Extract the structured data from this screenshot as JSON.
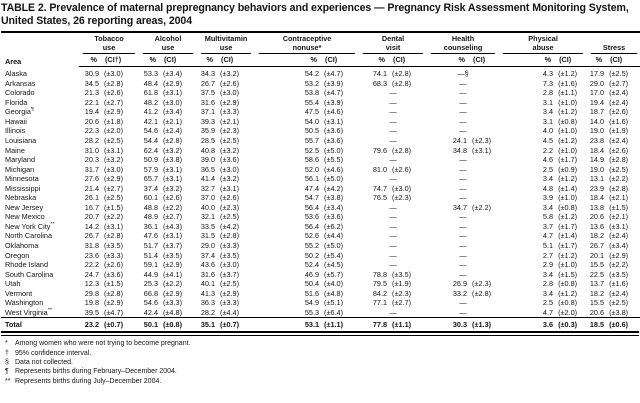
{
  "title": "TABLE 2. Prevalence of maternal prepregnancy behaviors and experiences — Pregnancy Risk Assessment Monitoring System, United States, 26 reporting areas, 2004",
  "header": {
    "area_label": "Area",
    "groups": [
      {
        "line1": "Tobacco",
        "line2": "use",
        "pct": "%",
        "ci": "(CI†)"
      },
      {
        "line1": "Alcohol",
        "line2": "use",
        "pct": "%",
        "ci": "(CI)"
      },
      {
        "line1": "Multivitamin",
        "line2": "use",
        "pct": "%",
        "ci": "(CI)"
      },
      {
        "line1": "Contraceptive",
        "line2": "nonuse*",
        "pct": "%",
        "ci": "(CI)"
      },
      {
        "line1": "Dental",
        "line2": "visit",
        "pct": "%",
        "ci": "(CI)"
      },
      {
        "line1": "Health",
        "line2": "counseling",
        "pct": "%",
        "ci": "(CI)"
      },
      {
        "line1": "Physical",
        "line2": "abuse",
        "pct": "%",
        "ci": "(CI)"
      },
      {
        "line1": "",
        "line2": "Stress",
        "pct": "%",
        "ci": "(CI)"
      }
    ]
  },
  "rows": [
    {
      "area": "Alaska",
      "marker": "",
      "cells": [
        [
          "30.9",
          "(±3.0)"
        ],
        [
          "53.3",
          "(±3.4)"
        ],
        [
          "34.3",
          "(±3.2)"
        ],
        [
          "54.2",
          "(±4.7)"
        ],
        [
          "74.1",
          "(±2.8)"
        ],
        [
          "—§",
          null
        ],
        [
          "4.3",
          "(±1.2)"
        ],
        [
          "17.9",
          "(±2.5)"
        ]
      ]
    },
    {
      "area": "Arkansas",
      "marker": "",
      "cells": [
        [
          "34.5",
          "(±2.8)"
        ],
        [
          "48.4",
          "(±2.9)"
        ],
        [
          "26.7",
          "(±2.6)"
        ],
        [
          "53.2",
          "(±3.9)"
        ],
        [
          "68.3",
          "(±2.8)"
        ],
        [
          "—",
          null
        ],
        [
          "7.3",
          "(±1.6)"
        ],
        [
          "29.0",
          "(±2.7)"
        ]
      ]
    },
    {
      "area": "Colorado",
      "marker": "",
      "cells": [
        [
          "21.3",
          "(±2.6)"
        ],
        [
          "61.8",
          "(±3.1)"
        ],
        [
          "37.5",
          "(±3.0)"
        ],
        [
          "53.8",
          "(±4.7)"
        ],
        [
          "—",
          null
        ],
        [
          "—",
          null
        ],
        [
          "2.8",
          "(±1.1)"
        ],
        [
          "17.0",
          "(±2.4)"
        ]
      ]
    },
    {
      "area": "Florida",
      "marker": "",
      "cells": [
        [
          "22.1",
          "(±2.7)"
        ],
        [
          "48.2",
          "(±3.0)"
        ],
        [
          "31.6",
          "(±2.9)"
        ],
        [
          "55.4",
          "(±3.9)"
        ],
        [
          "—",
          null
        ],
        [
          "—",
          null
        ],
        [
          "3.1",
          "(±1.0)"
        ],
        [
          "19.4",
          "(±2.4)"
        ]
      ]
    },
    {
      "area": "Georgia",
      "marker": "¶",
      "cells": [
        [
          "19.4",
          "(±2.9)"
        ],
        [
          "41.2",
          "(±3.4)"
        ],
        [
          "37.1",
          "(±3.3)"
        ],
        [
          "47.5",
          "(±4.6)"
        ],
        [
          "—",
          null
        ],
        [
          "—",
          null
        ],
        [
          "3.4",
          "(±1.2)"
        ],
        [
          "18.7",
          "(±2.6)"
        ]
      ]
    },
    {
      "area": "Hawaii",
      "marker": "",
      "cells": [
        [
          "20.6",
          "(±1.8)"
        ],
        [
          "42.1",
          "(±2.1)"
        ],
        [
          "39.3",
          "(±2.1)"
        ],
        [
          "54.0",
          "(±3.1)"
        ],
        [
          "—",
          null
        ],
        [
          "—",
          null
        ],
        [
          "3.1",
          "(±0.8)"
        ],
        [
          "14.0",
          "(±1.6)"
        ]
      ]
    },
    {
      "area": "Illinois",
      "marker": "",
      "cells": [
        [
          "22.3",
          "(±2.0)"
        ],
        [
          "54.6",
          "(±2.4)"
        ],
        [
          "35.9",
          "(±2.3)"
        ],
        [
          "50.5",
          "(±3.6)"
        ],
        [
          "—",
          null
        ],
        [
          "—",
          null
        ],
        [
          "4.0",
          "(±1.0)"
        ],
        [
          "19.0",
          "(±1.9)"
        ]
      ]
    },
    {
      "area": "Louisiana",
      "marker": "",
      "cells": [
        [
          "28.2",
          "(±2.5)"
        ],
        [
          "54.4",
          "(±2.8)"
        ],
        [
          "28.5",
          "(±2.5)"
        ],
        [
          "55.7",
          "(±3.6)"
        ],
        [
          "—",
          null
        ],
        [
          "24.1",
          "(±2.3)"
        ],
        [
          "4.5",
          "(±1.2)"
        ],
        [
          "23.8",
          "(±2.4)"
        ]
      ]
    },
    {
      "area": "Maine",
      "marker": "",
      "cells": [
        [
          "31.0",
          "(±3.1)"
        ],
        [
          "62.4",
          "(±3.2)"
        ],
        [
          "40.8",
          "(±3.2)"
        ],
        [
          "52.5",
          "(±5.0)"
        ],
        [
          "79.6",
          "(±2.8)"
        ],
        [
          "34.8",
          "(±3.1)"
        ],
        [
          "2.2",
          "(±1.0)"
        ],
        [
          "18.4",
          "(±2.6)"
        ]
      ]
    },
    {
      "area": "Maryland",
      "marker": "",
      "cells": [
        [
          "20.3",
          "(±3.2)"
        ],
        [
          "50.9",
          "(±3.8)"
        ],
        [
          "39.0",
          "(±3.6)"
        ],
        [
          "58.6",
          "(±5.5)"
        ],
        [
          "—",
          null
        ],
        [
          "—",
          null
        ],
        [
          "4.6",
          "(±1.7)"
        ],
        [
          "14.9",
          "(±2.8)"
        ]
      ]
    },
    {
      "area": "Michigan",
      "marker": "",
      "cells": [
        [
          "31.7",
          "(±3.0)"
        ],
        [
          "57.9",
          "(±3.1)"
        ],
        [
          "36.5",
          "(±3.0)"
        ],
        [
          "52.0",
          "(±4.6)"
        ],
        [
          "81.0",
          "(±2.6)"
        ],
        [
          "—",
          null
        ],
        [
          "2.5",
          "(±0.9)"
        ],
        [
          "19.0",
          "(±2.5)"
        ]
      ]
    },
    {
      "area": "Minnesota",
      "marker": "",
      "cells": [
        [
          "27.6",
          "(±2.9)"
        ],
        [
          "65.7",
          "(±3.1)"
        ],
        [
          "41.4",
          "(±3.2)"
        ],
        [
          "56.1",
          "(±5.0)"
        ],
        [
          "—",
          null
        ],
        [
          "—",
          null
        ],
        [
          "3.4",
          "(±1.2)"
        ],
        [
          "13.1",
          "(±2.2)"
        ]
      ]
    },
    {
      "area": "Mississippi",
      "marker": "",
      "cells": [
        [
          "21.4",
          "(±2.7)"
        ],
        [
          "37.4",
          "(±3.2)"
        ],
        [
          "32.7",
          "(±3.1)"
        ],
        [
          "47.4",
          "(±4.2)"
        ],
        [
          "74.7",
          "(±3.0)"
        ],
        [
          "—",
          null
        ],
        [
          "4.8",
          "(±1.4)"
        ],
        [
          "23.9",
          "(±2.8)"
        ]
      ]
    },
    {
      "area": "Nebraska",
      "marker": "",
      "cells": [
        [
          "26.1",
          "(±2.5)"
        ],
        [
          "60.1",
          "(±2.6)"
        ],
        [
          "37.0",
          "(±2.6)"
        ],
        [
          "54.7",
          "(±3.8)"
        ],
        [
          "76.5",
          "(±2.3)"
        ],
        [
          "—",
          null
        ],
        [
          "3.9",
          "(±1.0)"
        ],
        [
          "18.4",
          "(±2.1)"
        ]
      ]
    },
    {
      "area": "New Jersey",
      "marker": "",
      "cells": [
        [
          "16.7",
          "(±1.5)"
        ],
        [
          "48.8",
          "(±2.2)"
        ],
        [
          "40.0",
          "(±2.3)"
        ],
        [
          "56.4",
          "(±3.4)"
        ],
        [
          "—",
          null
        ],
        [
          "34.7",
          "(±2.2)"
        ],
        [
          "3.4",
          "(±0.8)"
        ],
        [
          "13.8",
          "(±1.5)"
        ]
      ]
    },
    {
      "area": "New Mexico",
      "marker": "",
      "cells": [
        [
          "20.7",
          "(±2.2)"
        ],
        [
          "48.9",
          "(±2.7)"
        ],
        [
          "32.1",
          "(±2.5)"
        ],
        [
          "53.6",
          "(±3.6)"
        ],
        [
          "—",
          null
        ],
        [
          "—",
          null
        ],
        [
          "5.8",
          "(±1.2)"
        ],
        [
          "20.6",
          "(±2.1)"
        ]
      ]
    },
    {
      "area": "New York City",
      "marker": "**",
      "cells": [
        [
          "14.2",
          "(±3.1)"
        ],
        [
          "36.1",
          "(±4.3)"
        ],
        [
          "33.5",
          "(±4.2)"
        ],
        [
          "56.4",
          "(±6.2)"
        ],
        [
          "—",
          null
        ],
        [
          "—",
          null
        ],
        [
          "3.7",
          "(±1.7)"
        ],
        [
          "13.6",
          "(±3.1)"
        ]
      ]
    },
    {
      "area": "North Carolina",
      "marker": "",
      "cells": [
        [
          "26.7",
          "(±2.8)"
        ],
        [
          "47.6",
          "(±3.1)"
        ],
        [
          "31.5",
          "(±2.8)"
        ],
        [
          "52.6",
          "(±4.4)"
        ],
        [
          "—",
          null
        ],
        [
          "—",
          null
        ],
        [
          "4.7",
          "(±1.4)"
        ],
        [
          "18.2",
          "(±2.4)"
        ]
      ]
    },
    {
      "area": "Oklahoma",
      "marker": "",
      "cells": [
        [
          "31.8",
          "(±3.5)"
        ],
        [
          "51.7",
          "(±3.7)"
        ],
        [
          "29.0",
          "(±3.3)"
        ],
        [
          "55.2",
          "(±5.0)"
        ],
        [
          "—",
          null
        ],
        [
          "—",
          null
        ],
        [
          "5.1",
          "(±1.7)"
        ],
        [
          "26.7",
          "(±3.4)"
        ]
      ]
    },
    {
      "area": "Oregon",
      "marker": "",
      "cells": [
        [
          "23.6",
          "(±3.3)"
        ],
        [
          "51.4",
          "(±3.5)"
        ],
        [
          "37.4",
          "(±3.5)"
        ],
        [
          "50.2",
          "(±5.4)"
        ],
        [
          "—",
          null
        ],
        [
          "—",
          null
        ],
        [
          "2.7",
          "(±1.2)"
        ],
        [
          "20.1",
          "(±2.9)"
        ]
      ]
    },
    {
      "area": "Rhode Island",
      "marker": "",
      "cells": [
        [
          "22.2",
          "(±2.6)"
        ],
        [
          "59.1",
          "(±2.9)"
        ],
        [
          "43.6",
          "(±3.0)"
        ],
        [
          "52.4",
          "(±4.5)"
        ],
        [
          "—",
          null
        ],
        [
          "—",
          null
        ],
        [
          "2.9",
          "(±1.0)"
        ],
        [
          "15.5",
          "(±2.2)"
        ]
      ]
    },
    {
      "area": "South Carolina",
      "marker": "",
      "cells": [
        [
          "24.7",
          "(±3.6)"
        ],
        [
          "44.9",
          "(±4.1)"
        ],
        [
          "31.6",
          "(±3.7)"
        ],
        [
          "46.9",
          "(±5.7)"
        ],
        [
          "78.8",
          "(±3.5)"
        ],
        [
          "—",
          null
        ],
        [
          "3.4",
          "(±1.5)"
        ],
        [
          "22.5",
          "(±3.5)"
        ]
      ]
    },
    {
      "area": "Utah",
      "marker": "",
      "cells": [
        [
          "12.3",
          "(±1.5)"
        ],
        [
          "25.3",
          "(±2.2)"
        ],
        [
          "40.1",
          "(±2.5)"
        ],
        [
          "50.4",
          "(±4.0)"
        ],
        [
          "79.5",
          "(±1.9)"
        ],
        [
          "26.9",
          "(±2.3)"
        ],
        [
          "2.8",
          "(±0.8)"
        ],
        [
          "13.7",
          "(±1.6)"
        ]
      ]
    },
    {
      "area": "Vermont",
      "marker": "",
      "cells": [
        [
          "29.8",
          "(±2.8)"
        ],
        [
          "66.8",
          "(±2.9)"
        ],
        [
          "41.3",
          "(±2.9)"
        ],
        [
          "51.6",
          "(±4.8)"
        ],
        [
          "84.2",
          "(±2.3)"
        ],
        [
          "33.2",
          "(±2.8)"
        ],
        [
          "3.4",
          "(±1.2)"
        ],
        [
          "18.2",
          "(±2.4)"
        ]
      ]
    },
    {
      "area": "Washington",
      "marker": "",
      "cells": [
        [
          "19.8",
          "(±2.9)"
        ],
        [
          "54.6",
          "(±3.3)"
        ],
        [
          "36.3",
          "(±3.3)"
        ],
        [
          "54.9",
          "(±5.1)"
        ],
        [
          "77.1",
          "(±2.7)"
        ],
        [
          "—",
          null
        ],
        [
          "2.5",
          "(±0.8)"
        ],
        [
          "15.5",
          "(±2.5)"
        ]
      ]
    },
    {
      "area": "West Virginia",
      "marker": "**",
      "cells": [
        [
          "39.5",
          "(±4.7)"
        ],
        [
          "42.4",
          "(±4.8)"
        ],
        [
          "28.2",
          "(±4.4)"
        ],
        [
          "55.3",
          "(±6.4)"
        ],
        [
          "—",
          null
        ],
        [
          "—",
          null
        ],
        [
          "4.7",
          "(±2.0)"
        ],
        [
          "20.6",
          "(±3.8)"
        ]
      ]
    },
    {
      "area": "Total",
      "marker": "",
      "total": true,
      "cells": [
        [
          "23.2",
          "(±0.7)"
        ],
        [
          "50.1",
          "(±0.8)"
        ],
        [
          "35.1",
          "(±0.7)"
        ],
        [
          "53.1",
          "(±1.1)"
        ],
        [
          "77.8",
          "(±1.1)"
        ],
        [
          "30.3",
          "(±1.3)"
        ],
        [
          "3.6",
          "(±0.3)"
        ],
        [
          "18.5",
          "(±0.6)"
        ]
      ]
    }
  ],
  "footnotes": [
    {
      "marker": "*",
      "text": "Among women who were not trying to become pregnant."
    },
    {
      "marker": "†",
      "text": "95% confidence interval."
    },
    {
      "marker": "§",
      "text": "Data not collected."
    },
    {
      "marker": "¶",
      "text": "Represents births during February–December 2004."
    },
    {
      "marker": "**",
      "text": "Represents births during July–December 2004."
    }
  ]
}
